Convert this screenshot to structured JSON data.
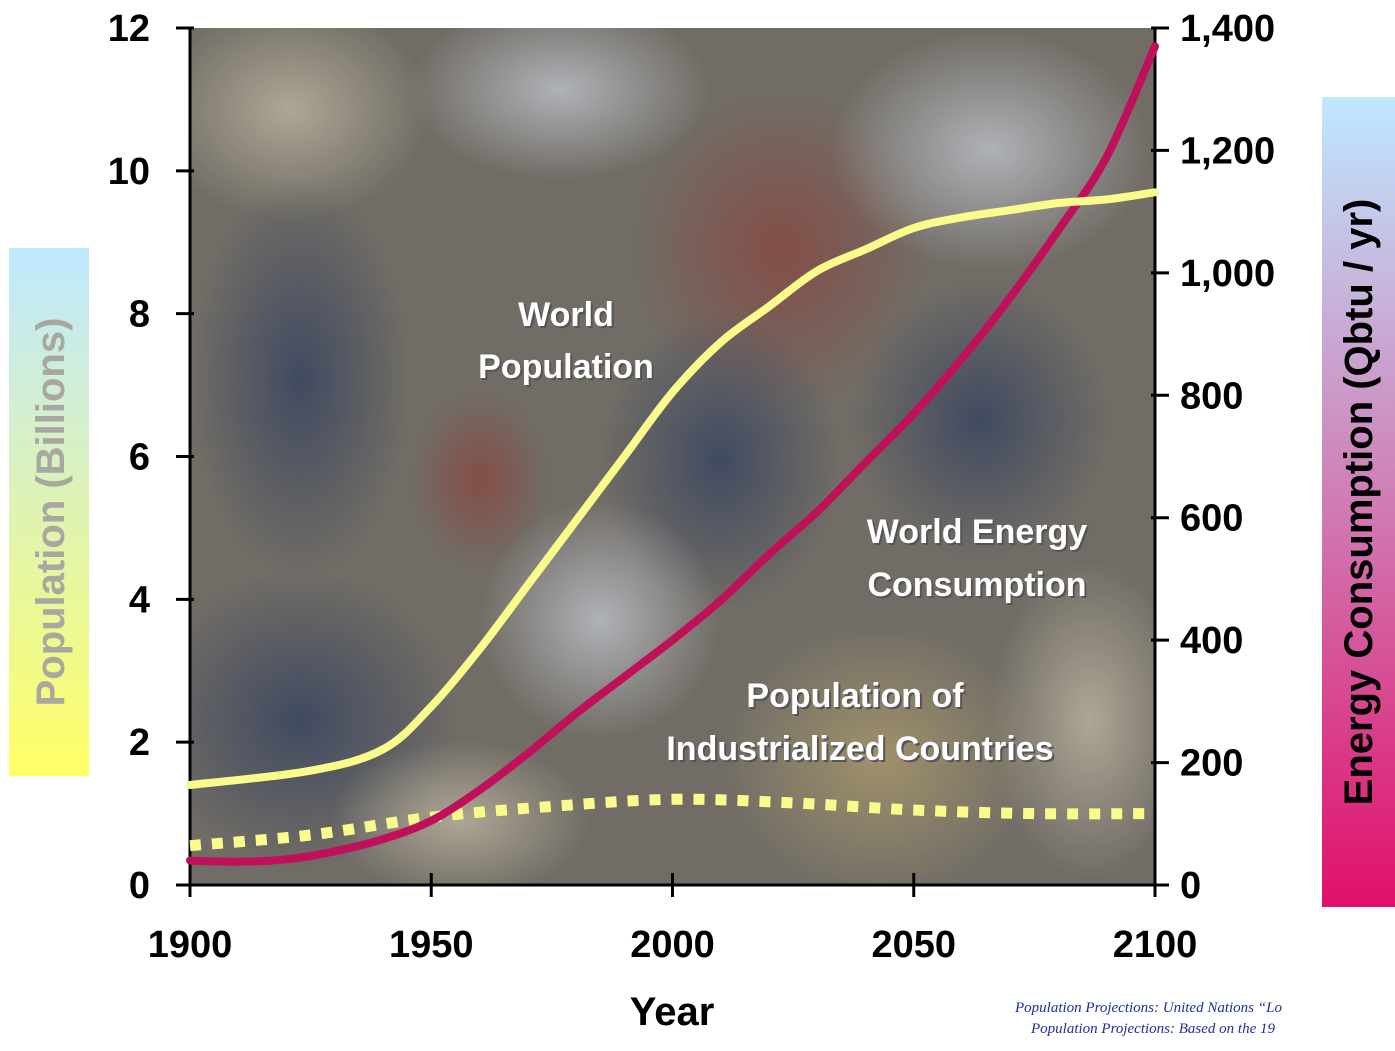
{
  "chart_data": {
    "type": "line",
    "title": "",
    "xlabel": "Year",
    "ylabel_left": "Population (Billions)",
    "ylabel_right": "Energy Consumption (Qbtu / yr)",
    "xlim": [
      1900,
      2100
    ],
    "ylim_left": [
      0,
      12
    ],
    "ylim_right": [
      0,
      1400
    ],
    "x_ticks": [
      "1900",
      "1950",
      "2000",
      "2050",
      "2100"
    ],
    "y_left_ticks": [
      "0",
      "2",
      "4",
      "6",
      "8",
      "10",
      "12"
    ],
    "y_right_ticks": [
      "0",
      "200",
      "400",
      "600",
      "800",
      "1,000",
      "1,200",
      "1,400"
    ],
    "grid": false,
    "background": "photo of a crowd",
    "series": [
      {
        "name": "World Population",
        "axis": "left",
        "color": "#fbfb8c",
        "style": "solid",
        "x": [
          1900,
          1925,
          1940,
          1950,
          1960,
          1970,
          1980,
          1990,
          2000,
          2010,
          2020,
          2030,
          2040,
          2050,
          2060,
          2070,
          2080,
          2090,
          2100
        ],
        "y": [
          1.4,
          1.6,
          1.9,
          2.5,
          3.3,
          4.2,
          5.1,
          6.0,
          6.9,
          7.6,
          8.1,
          8.6,
          8.9,
          9.2,
          9.35,
          9.45,
          9.55,
          9.6,
          9.7
        ]
      },
      {
        "name": "World Energy Consumption",
        "axis": "right",
        "color": "#c0105a",
        "style": "solid",
        "x": [
          1900,
          1910,
          1920,
          1930,
          1940,
          1950,
          1960,
          1970,
          1980,
          1990,
          2000,
          2010,
          2020,
          2030,
          2040,
          2050,
          2060,
          2070,
          2080,
          2090,
          2100
        ],
        "y": [
          40,
          38,
          42,
          55,
          75,
          105,
          155,
          215,
          280,
          340,
          400,
          465,
          540,
          610,
          690,
          770,
          860,
          960,
          1070,
          1190,
          1370
        ]
      },
      {
        "name": "Population of Industrialized Countries",
        "axis": "left",
        "color": "#fbfb8c",
        "style": "dotted",
        "x": [
          1900,
          1925,
          1950,
          1975,
          2000,
          2025,
          2050,
          2075,
          2100
        ],
        "y": [
          0.55,
          0.7,
          0.95,
          1.1,
          1.2,
          1.15,
          1.05,
          1.0,
          1.0
        ]
      }
    ],
    "annotations": [
      [
        "World",
        "Population"
      ],
      [
        "World Energy",
        "Consumption"
      ],
      [
        "Population of",
        "Industrialized Countries"
      ]
    ],
    "source_notes": [
      "Population Projections: United Nations “Lo",
      "Population Projections: Based on the 19"
    ]
  }
}
